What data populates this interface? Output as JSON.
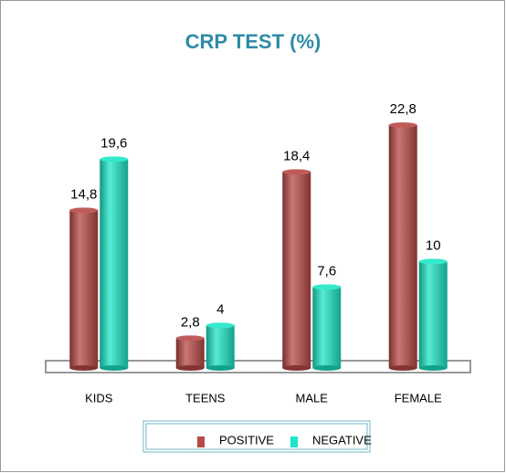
{
  "chart_data": {
    "type": "bar",
    "title": "CRP TEST (%)",
    "categories": [
      "KIDS",
      "TEENS",
      "MALE",
      "FEMALE"
    ],
    "series": [
      {
        "name": "POSITIVE",
        "color": "#b84a47",
        "values": [
          14.8,
          2.8,
          18.4,
          22.8
        ],
        "value_labels": [
          "14,8",
          "2,8",
          "18,4",
          "22,8"
        ]
      },
      {
        "name": "NEGATIVE",
        "color": "#1de6c6",
        "values": [
          19.6,
          4,
          7.6,
          10
        ],
        "value_labels": [
          "19,6",
          "4",
          "7,6",
          "10"
        ]
      }
    ],
    "legend": "bottom"
  }
}
